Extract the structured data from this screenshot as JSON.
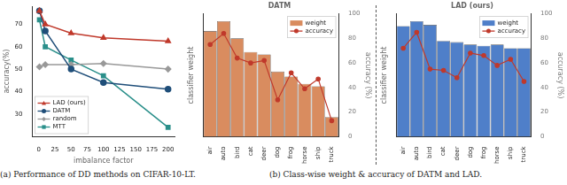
{
  "captions": [
    "(a) Performance of DD methods on CIFAR-10-LT.",
    "(b) Class-wise weight & accuracy of DATM and LAD."
  ],
  "chart_data": [
    {
      "type": "line",
      "x_label": "imbalance factor",
      "y_label": "accuracy(%)",
      "x": [
        1,
        10,
        50,
        100,
        200
      ],
      "xlim": [
        -10,
        210
      ],
      "xticks": [
        0,
        25,
        50,
        75,
        100,
        125,
        150,
        175,
        200
      ],
      "ylim": [
        20,
        78
      ],
      "yticks": [
        30,
        40,
        50,
        60,
        70
      ],
      "grid": false,
      "legend": "lower left",
      "series": [
        {
          "name": "LAD (ours)",
          "color": "#c0392b",
          "marker": "triangle",
          "values": [
            76,
            70,
            66,
            64,
            62.5
          ]
        },
        {
          "name": "DATM",
          "color": "#1f4e79",
          "marker": "circle",
          "values": [
            76,
            67,
            50,
            44,
            41
          ]
        },
        {
          "name": "random",
          "color": "#999999",
          "marker": "diamond",
          "values": [
            51,
            52,
            52,
            52.5,
            50
          ]
        },
        {
          "name": "MTT",
          "color": "#2a8f8a",
          "marker": "square",
          "values": [
            72,
            60,
            54,
            47,
            24
          ]
        }
      ]
    },
    {
      "type": "bar",
      "title": "DATM",
      "y_label": "classifier weight",
      "y2_label": "accuracy (%)",
      "categories": [
        "air",
        "auto",
        "bird",
        "cat",
        "deer",
        "dog",
        "frog",
        "horse",
        "ship",
        "truck"
      ],
      "ylim": [
        0,
        1
      ],
      "yticks": [],
      "y2lim": [
        0,
        100
      ],
      "y2ticks": [
        0,
        20,
        40,
        60,
        80,
        100
      ],
      "grid": false,
      "legend": "upper right",
      "series": [
        {
          "name": "weight",
          "type": "bar",
          "color": "#d98c5f",
          "values": [
            0.86,
            0.94,
            0.8,
            0.69,
            0.67,
            0.53,
            0.49,
            0.43,
            0.41,
            0.16
          ]
        },
        {
          "name": "accuracy",
          "type": "line",
          "axis": "y2",
          "color": "#c0392b",
          "marker": "circle",
          "values": [
            75,
            84,
            64,
            60,
            62,
            30,
            52,
            39,
            47,
            13
          ]
        }
      ]
    },
    {
      "type": "bar",
      "title": "LAD (ours)",
      "y_label": "classifier weight",
      "y2_label": "accuracy (%)",
      "categories": [
        "air",
        "auto",
        "bird",
        "cat",
        "deer",
        "dog",
        "frog",
        "horse",
        "ship",
        "truck"
      ],
      "ylim": [
        0,
        1
      ],
      "yticks": [],
      "y2lim": [
        0,
        100
      ],
      "y2ticks": [
        0,
        20,
        40,
        60,
        80,
        100
      ],
      "grid": false,
      "legend": "upper right",
      "series": [
        {
          "name": "weight",
          "type": "bar",
          "color": "#4f7fc9",
          "values": [
            0.9,
            0.94,
            0.91,
            0.78,
            0.77,
            0.75,
            0.74,
            0.75,
            0.72,
            0.72
          ]
        },
        {
          "name": "accuracy",
          "type": "line",
          "axis": "y2",
          "color": "#c0392b",
          "marker": "circle",
          "values": [
            72,
            85,
            55,
            54,
            48,
            68,
            66,
            58,
            63,
            45
          ]
        }
      ]
    }
  ]
}
